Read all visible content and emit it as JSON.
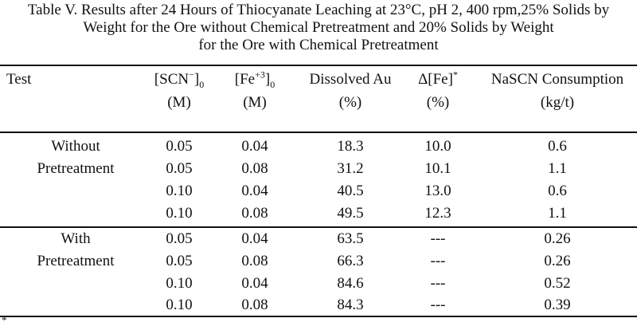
{
  "caption": {
    "line1": "Table V.  Results after 24 Hours of Thiocyanate Leaching at 23°C, pH 2, 400 rpm,25% Solids by",
    "line2": "Weight for the Ore without Chemical Pretreatment and 20% Solids by Weight",
    "line3": "for the Ore with Chemical Pretreatment"
  },
  "headers": {
    "test": "Test",
    "scn": {
      "base": "[SCN",
      "sup": "−",
      "close": "]",
      "sub": "0",
      "unit": "(M)"
    },
    "fe": {
      "base": "[Fe",
      "sup": "+3",
      "close": "]",
      "sub": "0",
      "unit": "(M)"
    },
    "au": {
      "name": "Dissolved Au",
      "unit": "(%)"
    },
    "dfe": {
      "base": "Δ[Fe]",
      "sup": "*",
      "unit": "(%)"
    },
    "nascn": {
      "name": "NaSCN Consumption",
      "unit": "(kg/t)"
    }
  },
  "groups": [
    {
      "label_line1": "Without",
      "label_line2": "Pretreatment",
      "rows": [
        {
          "scn": "0.05",
          "fe": "0.04",
          "au": "18.3",
          "dfe": "10.0",
          "nascn": "0.6"
        },
        {
          "scn": "0.05",
          "fe": "0.08",
          "au": "31.2",
          "dfe": "10.1",
          "nascn": "1.1"
        },
        {
          "scn": "0.10",
          "fe": "0.04",
          "au": "40.5",
          "dfe": "13.0",
          "nascn": "0.6"
        },
        {
          "scn": "0.10",
          "fe": "0.08",
          "au": "49.5",
          "dfe": "12.3",
          "nascn": "1.1"
        }
      ]
    },
    {
      "label_line1": "With",
      "label_line2": "Pretreatment",
      "rows": [
        {
          "scn": "0.05",
          "fe": "0.04",
          "au": "63.5",
          "dfe": "---",
          "nascn": "0.26"
        },
        {
          "scn": "0.05",
          "fe": "0.08",
          "au": "66.3",
          "dfe": "---",
          "nascn": "0.26"
        },
        {
          "scn": "0.10",
          "fe": "0.04",
          "au": "84.6",
          "dfe": "---",
          "nascn": "0.52"
        },
        {
          "scn": "0.10",
          "fe": "0.08",
          "au": "84.3",
          "dfe": "---",
          "nascn": "0.39"
        }
      ]
    }
  ],
  "footnote_mark": "*"
}
